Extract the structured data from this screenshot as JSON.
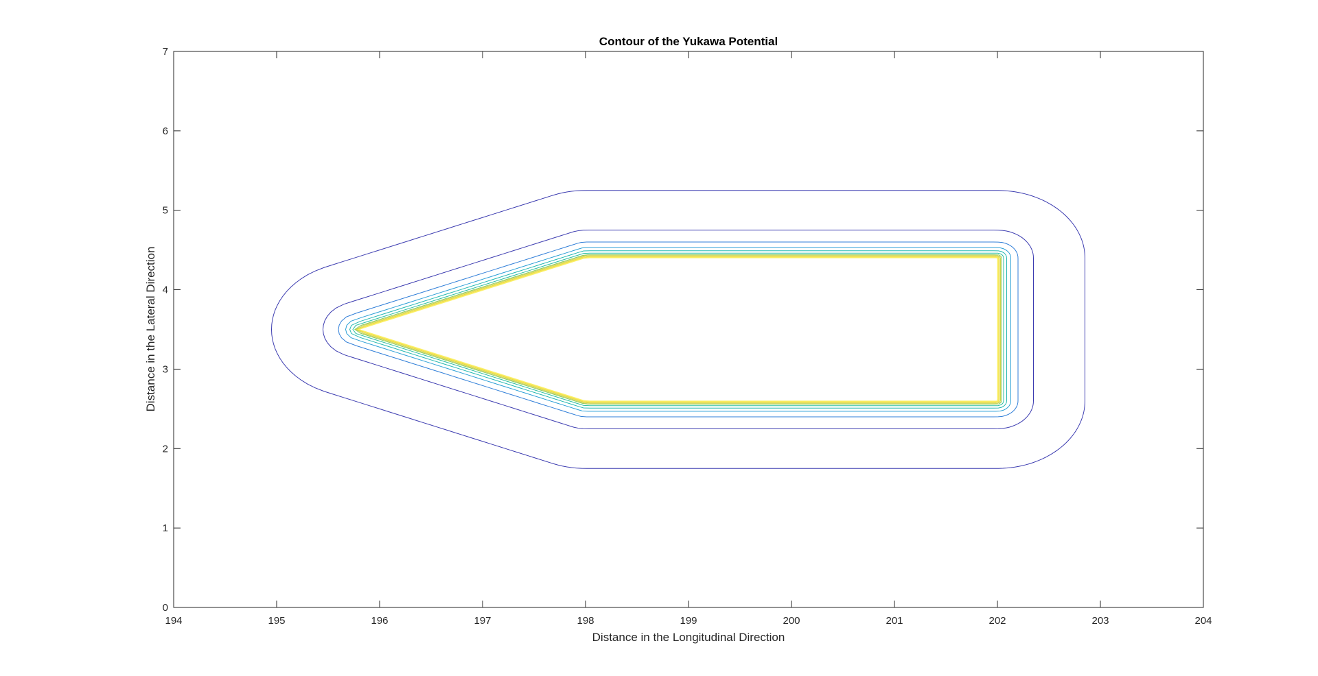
{
  "chart_data": {
    "type": "contour",
    "title": "Contour of the Yukawa Potential",
    "xlabel": "Distance in the Longitudinal Direction",
    "ylabel": "Distance in the Lateral Direction",
    "xlim": [
      194,
      204
    ],
    "ylim": [
      0,
      7
    ],
    "xticks": [
      194,
      195,
      196,
      197,
      198,
      199,
      200,
      201,
      202,
      203,
      204
    ],
    "yticks": [
      0,
      1,
      2,
      3,
      4,
      5,
      6,
      7
    ],
    "grid": false,
    "legend": "none",
    "colormap": "parula",
    "shape": {
      "description_free": true,
      "rect_x": [
        198,
        202
      ],
      "rect_y": [
        2.6,
        4.4
      ],
      "nose_point": [
        195.8,
        3.5
      ]
    },
    "levels": [
      {
        "offset": 0.85,
        "color": "#3b3bb0"
      },
      {
        "offset": 0.35,
        "color": "#3b3bb0"
      },
      {
        "offset": 0.2,
        "color": "#2f7ed8"
      },
      {
        "offset": 0.13,
        "color": "#2a9fd6"
      },
      {
        "offset": 0.09,
        "color": "#22b8b0"
      },
      {
        "offset": 0.06,
        "color": "#2bbfa0"
      },
      {
        "offset": 0.04,
        "color": "#8cc95a"
      },
      {
        "offset": 0.03,
        "color": "#c9d24a"
      },
      {
        "offset": 0.02,
        "color": "#e6d63c"
      },
      {
        "offset": 0.012,
        "color": "#f2e34a"
      },
      {
        "offset": 0.006,
        "color": "#f8ea5c"
      },
      {
        "offset": 0.001,
        "color": "#fbf06a"
      }
    ]
  }
}
